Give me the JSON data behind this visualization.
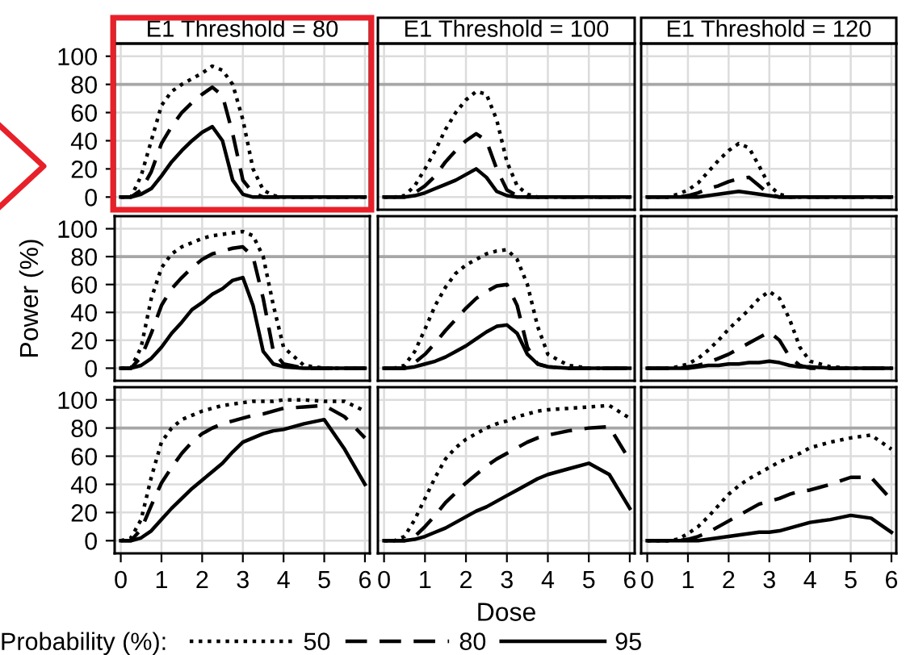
{
  "chart_data": [
    {
      "type": "line",
      "title": "E1 Threshold = 80",
      "x": [
        0,
        0.25,
        0.5,
        0.75,
        1,
        1.25,
        1.5,
        1.75,
        2,
        2.25,
        2.5,
        2.75,
        3,
        3.25,
        3.5,
        3.75,
        4,
        4.5,
        5,
        5.5,
        6
      ],
      "xlim": [
        -0.15,
        6.12
      ],
      "ylim": [
        -9,
        109
      ],
      "xticks": [
        0,
        1,
        2,
        3,
        4,
        5,
        6
      ],
      "yticks": [
        0,
        20,
        40,
        60,
        80,
        100
      ],
      "grid": true,
      "tick_labels": "y",
      "ref_lines": [
        {
          "axis": "y",
          "value": 80,
          "color": "#a6a6a6"
        }
      ],
      "series": [
        {
          "color": "#000000",
          "line_style": "dotted",
          "values": [
            0,
            0,
            15,
            40,
            65,
            75,
            80,
            84,
            88,
            93,
            90,
            80,
            55,
            20,
            5,
            1,
            0,
            0,
            0,
            0,
            0
          ]
        },
        {
          "color": "#000000",
          "line_style": "dashed",
          "values": [
            0,
            0,
            5,
            18,
            38,
            50,
            60,
            67,
            73,
            78,
            72,
            45,
            12,
            3,
            0,
            0,
            0,
            0,
            0,
            0,
            0
          ]
        },
        {
          "color": "#000000",
          "line_style": "solid",
          "values": [
            0,
            0,
            2,
            6,
            15,
            25,
            33,
            40,
            46,
            50,
            40,
            12,
            2,
            0,
            0,
            0,
            0,
            0,
            0,
            0,
            0
          ]
        }
      ]
    },
    {
      "type": "line",
      "title": "E1 Threshold = 100",
      "x": [
        0,
        0.25,
        0.5,
        0.75,
        1,
        1.25,
        1.5,
        1.75,
        2,
        2.25,
        2.5,
        2.75,
        3,
        3.25,
        3.5,
        3.75,
        4,
        4.5,
        5,
        5.5,
        6
      ],
      "xlim": [
        -0.15,
        6.12
      ],
      "ylim": [
        -9,
        109
      ],
      "xticks": [
        0,
        1,
        2,
        3,
        4,
        5,
        6
      ],
      "yticks": [
        0,
        20,
        40,
        60,
        80,
        100
      ],
      "grid": true,
      "tick_labels": false,
      "ref_lines": [
        {
          "axis": "y",
          "value": 80,
          "color": "#a6a6a6"
        }
      ],
      "series": [
        {
          "color": "#000000",
          "line_style": "dotted",
          "values": [
            0,
            0,
            1,
            8,
            20,
            33,
            48,
            60,
            69,
            75,
            73,
            55,
            25,
            8,
            2,
            0,
            0,
            0,
            0,
            0,
            0
          ]
        },
        {
          "color": "#000000",
          "line_style": "dashed",
          "values": [
            0,
            0,
            0,
            3,
            8,
            15,
            25,
            33,
            40,
            45,
            40,
            20,
            5,
            1,
            0,
            0,
            0,
            0,
            0,
            0,
            0
          ]
        },
        {
          "color": "#000000",
          "line_style": "solid",
          "values": [
            0,
            0,
            0,
            1,
            3,
            6,
            9,
            12,
            16,
            20,
            14,
            4,
            1,
            0,
            0,
            0,
            0,
            0,
            0,
            0,
            0
          ]
        }
      ]
    },
    {
      "type": "line",
      "title": "E1 Threshold = 120",
      "x": [
        0,
        0.25,
        0.5,
        0.75,
        1,
        1.25,
        1.5,
        1.75,
        2,
        2.25,
        2.5,
        2.75,
        3,
        3.25,
        3.5,
        3.75,
        4,
        4.5,
        5,
        5.5,
        6
      ],
      "xlim": [
        -0.15,
        6.12
      ],
      "ylim": [
        -9,
        109
      ],
      "xticks": [
        0,
        1,
        2,
        3,
        4,
        5,
        6
      ],
      "yticks": [
        0,
        20,
        40,
        60,
        80,
        100
      ],
      "grid": true,
      "tick_labels": false,
      "ref_lines": [
        {
          "axis": "y",
          "value": 80,
          "color": "#a6a6a6"
        }
      ],
      "series": [
        {
          "color": "#000000",
          "line_style": "dotted",
          "values": [
            0,
            0,
            0,
            2,
            5,
            10,
            18,
            26,
            33,
            38,
            35,
            22,
            8,
            2,
            0,
            0,
            0,
            0,
            0,
            0,
            0
          ]
        },
        {
          "color": "#000000",
          "line_style": "dashed",
          "values": [
            0,
            0,
            0,
            0,
            1,
            3,
            6,
            8,
            11,
            13,
            14,
            8,
            2,
            0,
            0,
            0,
            0,
            0,
            0,
            0,
            0
          ]
        },
        {
          "color": "#000000",
          "line_style": "solid",
          "values": [
            0,
            0,
            0,
            0,
            0,
            0,
            1,
            2,
            3,
            4,
            3,
            2,
            1,
            0,
            0,
            0,
            0,
            0,
            0,
            0,
            0
          ]
        }
      ]
    },
    {
      "type": "line",
      "ylabel": "Power (%)",
      "x": [
        0,
        0.25,
        0.5,
        0.75,
        1,
        1.25,
        1.5,
        1.75,
        2,
        2.25,
        2.5,
        2.75,
        3,
        3.25,
        3.5,
        3.75,
        4,
        4.5,
        5,
        5.5,
        6
      ],
      "xlim": [
        -0.15,
        6.12
      ],
      "ylim": [
        -9,
        109
      ],
      "xticks": [
        0,
        1,
        2,
        3,
        4,
        5,
        6
      ],
      "yticks": [
        0,
        20,
        40,
        60,
        80,
        100
      ],
      "grid": true,
      "tick_labels": "y",
      "ref_lines": [
        {
          "axis": "y",
          "value": 80,
          "color": "#a6a6a6"
        }
      ],
      "series": [
        {
          "color": "#000000",
          "line_style": "dotted",
          "values": [
            0,
            0,
            15,
            50,
            72,
            82,
            87,
            90,
            93,
            95,
            96,
            97,
            98,
            95,
            80,
            45,
            15,
            2,
            0,
            0,
            0
          ]
        },
        {
          "color": "#000000",
          "line_style": "dashed",
          "values": [
            0,
            0,
            8,
            25,
            45,
            57,
            65,
            72,
            78,
            82,
            84,
            86,
            87,
            80,
            50,
            12,
            3,
            0,
            0,
            0,
            0
          ]
        },
        {
          "color": "#000000",
          "line_style": "solid",
          "values": [
            0,
            0,
            2,
            7,
            15,
            25,
            33,
            42,
            47,
            53,
            57,
            63,
            65,
            45,
            12,
            3,
            1,
            0,
            0,
            0,
            0
          ]
        }
      ]
    },
    {
      "type": "line",
      "x": [
        0,
        0.25,
        0.5,
        0.75,
        1,
        1.25,
        1.5,
        1.75,
        2,
        2.25,
        2.5,
        2.75,
        3,
        3.25,
        3.5,
        3.75,
        4,
        4.5,
        5,
        5.5,
        6
      ],
      "xlim": [
        -0.15,
        6.12
      ],
      "ylim": [
        -9,
        109
      ],
      "xticks": [
        0,
        1,
        2,
        3,
        4,
        5,
        6
      ],
      "yticks": [
        0,
        20,
        40,
        60,
        80,
        100
      ],
      "grid": true,
      "tick_labels": false,
      "ref_lines": [
        {
          "axis": "y",
          "value": 80,
          "color": "#a6a6a6"
        }
      ],
      "series": [
        {
          "color": "#000000",
          "line_style": "dotted",
          "values": [
            0,
            0,
            2,
            12,
            28,
            45,
            58,
            68,
            74,
            78,
            82,
            84,
            85,
            78,
            60,
            30,
            10,
            2,
            0,
            0,
            0
          ]
        },
        {
          "color": "#000000",
          "line_style": "dashed",
          "values": [
            0,
            0,
            0,
            4,
            10,
            18,
            27,
            35,
            43,
            50,
            55,
            59,
            60,
            45,
            15,
            3,
            1,
            0,
            0,
            0,
            0
          ]
        },
        {
          "color": "#000000",
          "line_style": "solid",
          "values": [
            0,
            0,
            0,
            1,
            3,
            5,
            8,
            12,
            16,
            21,
            26,
            30,
            31,
            25,
            10,
            3,
            1,
            0,
            0,
            0,
            0
          ]
        }
      ]
    },
    {
      "type": "line",
      "x": [
        0,
        0.25,
        0.5,
        0.75,
        1,
        1.25,
        1.5,
        1.75,
        2,
        2.25,
        2.5,
        2.75,
        3,
        3.25,
        3.5,
        3.75,
        4,
        4.5,
        5,
        5.5,
        6
      ],
      "xlim": [
        -0.15,
        6.12
      ],
      "ylim": [
        -9,
        109
      ],
      "xticks": [
        0,
        1,
        2,
        3,
        4,
        5,
        6
      ],
      "yticks": [
        0,
        20,
        40,
        60,
        80,
        100
      ],
      "grid": true,
      "tick_labels": false,
      "ref_lines": [
        {
          "axis": "y",
          "value": 80,
          "color": "#a6a6a6"
        }
      ],
      "series": [
        {
          "color": "#000000",
          "line_style": "dotted",
          "values": [
            0,
            0,
            0,
            1,
            3,
            7,
            13,
            20,
            28,
            35,
            42,
            50,
            55,
            50,
            35,
            15,
            5,
            1,
            0,
            0,
            0
          ]
        },
        {
          "color": "#000000",
          "line_style": "dashed",
          "values": [
            0,
            0,
            0,
            0,
            1,
            2,
            4,
            7,
            10,
            14,
            18,
            22,
            26,
            20,
            8,
            2,
            0,
            0,
            0,
            0,
            0
          ]
        },
        {
          "color": "#000000",
          "line_style": "solid",
          "values": [
            0,
            0,
            0,
            0,
            0,
            1,
            2,
            2,
            3,
            3,
            4,
            4,
            5,
            4,
            2,
            1,
            1,
            0,
            0,
            0,
            0
          ]
        }
      ]
    },
    {
      "type": "line",
      "x": [
        0,
        0.25,
        0.5,
        0.75,
        1,
        1.25,
        1.5,
        1.75,
        2,
        2.25,
        2.5,
        2.75,
        3,
        3.25,
        3.5,
        3.75,
        4,
        4.5,
        5,
        5.5,
        6
      ],
      "xlim": [
        -0.15,
        6.12
      ],
      "ylim": [
        -9,
        109
      ],
      "xticks": [
        0,
        1,
        2,
        3,
        4,
        5,
        6
      ],
      "yticks": [
        0,
        20,
        40,
        60,
        80,
        100
      ],
      "grid": true,
      "ref_lines": [
        {
          "axis": "y",
          "value": 80,
          "color": "#a6a6a6"
        }
      ],
      "series": [
        {
          "color": "#000000",
          "line_style": "dotted",
          "values": [
            0,
            2,
            15,
            45,
            70,
            80,
            86,
            89,
            92,
            94,
            96,
            97,
            98,
            99,
            99,
            99,
            100,
            100,
            99,
            99,
            92
          ]
        },
        {
          "color": "#000000",
          "line_style": "dashed",
          "values": [
            0,
            0,
            8,
            25,
            41,
            52,
            62,
            70,
            76,
            80,
            83,
            85,
            87,
            89,
            90,
            92,
            94,
            95,
            96,
            88,
            73
          ]
        },
        {
          "color": "#000000",
          "line_style": "solid",
          "values": [
            0,
            0,
            2,
            7,
            15,
            23,
            30,
            37,
            43,
            49,
            55,
            63,
            70,
            73,
            76,
            78,
            79,
            83,
            86,
            65,
            40
          ]
        }
      ]
    },
    {
      "type": "line",
      "xlabel": "Dose",
      "legend_title": "Probability (%):",
      "legend": "bottom",
      "x": [
        0,
        0.25,
        0.5,
        0.75,
        1,
        1.25,
        1.5,
        1.75,
        2,
        2.25,
        2.5,
        2.75,
        3,
        3.25,
        3.5,
        3.75,
        4,
        4.5,
        5,
        5.5,
        6
      ],
      "xlim": [
        -0.15,
        6.12
      ],
      "ylim": [
        -9,
        109
      ],
      "xticks": [
        0,
        1,
        2,
        3,
        4,
        5,
        6
      ],
      "yticks": [
        0,
        20,
        40,
        60,
        80,
        100
      ],
      "grid": true,
      "tick_labels": "x",
      "ref_lines": [
        {
          "axis": "y",
          "value": 80,
          "color": "#a6a6a6"
        }
      ],
      "series": [
        {
          "name": "50",
          "color": "#000000",
          "line_style": "dotted",
          "values": [
            0,
            0,
            3,
            15,
            30,
            45,
            58,
            66,
            72,
            76,
            80,
            83,
            85,
            88,
            90,
            92,
            93,
            94,
            95,
            96,
            87
          ]
        },
        {
          "name": "80",
          "color": "#000000",
          "line_style": "dashed",
          "values": [
            0,
            0,
            0,
            3,
            10,
            18,
            27,
            34,
            41,
            47,
            53,
            58,
            62,
            66,
            70,
            73,
            75,
            78,
            80,
            81,
            57
          ]
        },
        {
          "name": "95",
          "color": "#000000",
          "line_style": "solid",
          "values": [
            0,
            0,
            0,
            1,
            3,
            6,
            9,
            13,
            17,
            21,
            24,
            28,
            32,
            36,
            40,
            44,
            47,
            51,
            55,
            47,
            23
          ]
        }
      ]
    },
    {
      "type": "line",
      "x": [
        0,
        0.25,
        0.5,
        0.75,
        1,
        1.25,
        1.5,
        1.75,
        2,
        2.25,
        2.5,
        2.75,
        3,
        3.25,
        3.5,
        3.75,
        4,
        4.5,
        5,
        5.5,
        6
      ],
      "xlim": [
        -0.15,
        6.12
      ],
      "ylim": [
        -9,
        109
      ],
      "xticks": [
        0,
        1,
        2,
        3,
        4,
        5,
        6
      ],
      "yticks": [
        0,
        20,
        40,
        60,
        80,
        100
      ],
      "grid": true,
      "tick_labels": "x",
      "ref_lines": [
        {
          "axis": "y",
          "value": 80,
          "color": "#a6a6a6"
        }
      ],
      "series": [
        {
          "color": "#000000",
          "line_style": "dotted",
          "values": [
            0,
            0,
            0,
            1,
            5,
            10,
            17,
            25,
            33,
            39,
            44,
            48,
            52,
            56,
            59,
            62,
            66,
            70,
            73,
            75,
            65
          ]
        },
        {
          "color": "#000000",
          "line_style": "dashed",
          "values": [
            0,
            0,
            0,
            0,
            1,
            3,
            6,
            10,
            14,
            18,
            22,
            26,
            28,
            30,
            33,
            35,
            36,
            40,
            45,
            45,
            29
          ]
        },
        {
          "color": "#000000",
          "line_style": "solid",
          "values": [
            0,
            0,
            0,
            0,
            0,
            0,
            1,
            2,
            3,
            4,
            5,
            6,
            6,
            7,
            9,
            11,
            13,
            15,
            18,
            16,
            6
          ]
        }
      ]
    }
  ]
}
